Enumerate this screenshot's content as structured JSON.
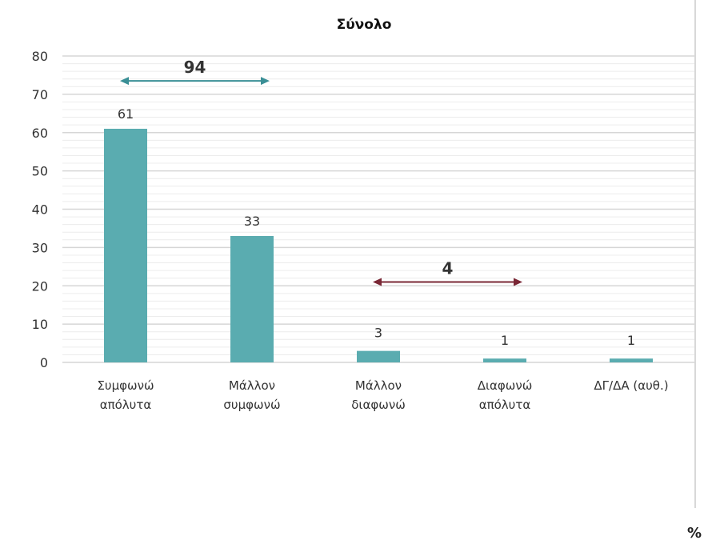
{
  "chart_data": {
    "type": "bar",
    "title": "Σύνολο",
    "unit_label": "%",
    "categories": [
      [
        "Συμφωνώ",
        "απόλυτα"
      ],
      [
        "Μάλλον",
        "συμφωνώ"
      ],
      [
        "Μάλλον",
        "διαφωνώ"
      ],
      [
        "Διαφωνώ",
        "απόλυτα"
      ],
      [
        "ΔΓ/ΔΑ (αυθ.)"
      ]
    ],
    "values": [
      61,
      33,
      3,
      1,
      1
    ],
    "value_labels": [
      "61",
      "33",
      "3",
      "1",
      "1"
    ],
    "ylim": [
      0,
      80
    ],
    "yticks": [
      0,
      10,
      20,
      30,
      40,
      50,
      60,
      70,
      80
    ],
    "ytick_labels": [
      "0",
      "10",
      "20",
      "30",
      "40",
      "50",
      "60",
      "70",
      "80"
    ],
    "minor_grid_step": 2,
    "grid": true,
    "annotations": [
      {
        "label": "94",
        "from_category": 0,
        "to_category": 1,
        "y": 73.5,
        "color": "#3a8f96"
      },
      {
        "label": "4",
        "from_category": 2,
        "to_category": 3,
        "y": 21,
        "color": "#7a2735"
      }
    ],
    "bar_color": "#5aacb0"
  }
}
